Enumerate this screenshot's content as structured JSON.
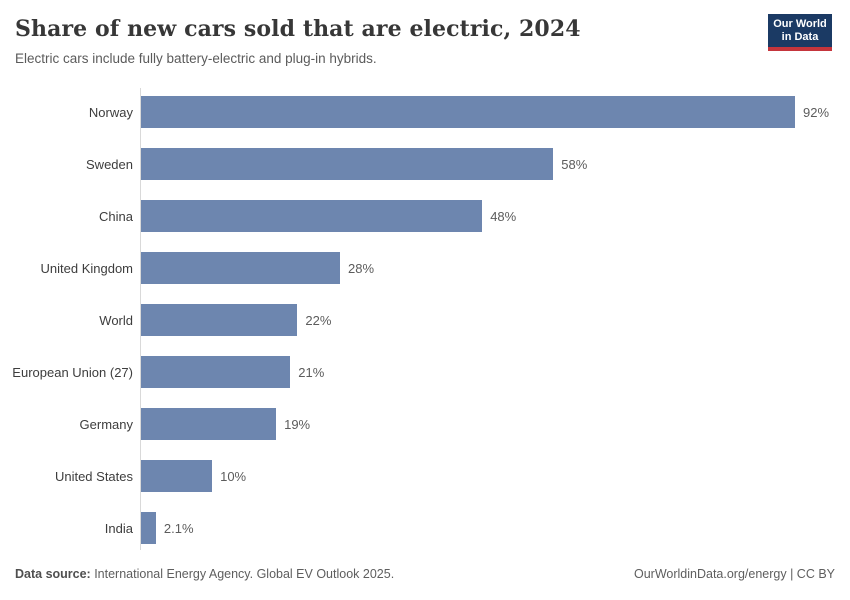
{
  "header": {
    "title": "Share of new cars sold that are electric, 2024",
    "subtitle": "Electric cars include fully battery-electric and plug-in hybrids.",
    "logo": {
      "line1": "Our World",
      "line2": "in Data",
      "bg_color": "#1b3a64",
      "accent_color": "#c5353c"
    }
  },
  "chart_data": {
    "type": "bar",
    "orientation": "horizontal",
    "title": "Share of new cars sold that are electric, 2024",
    "subtitle": "Electric cars include fully battery-electric and plug-in hybrids.",
    "categories": [
      "Norway",
      "Sweden",
      "China",
      "United Kingdom",
      "World",
      "European Union (27)",
      "Germany",
      "United States",
      "India"
    ],
    "values": [
      92,
      58,
      48,
      28,
      22,
      21,
      19,
      10,
      2.1
    ],
    "value_labels": [
      "92%",
      "58%",
      "48%",
      "28%",
      "22%",
      "21%",
      "19%",
      "10%",
      "2.1%"
    ],
    "xlabel": "",
    "ylabel": "",
    "xlim": [
      0,
      100
    ],
    "unit": "%",
    "bar_color": "#6d86af",
    "axis_line_color": "#d9d9d9",
    "grid": false,
    "legend": false
  },
  "footer": {
    "source_label": "Data source:",
    "source_text": " International Energy Agency. Global EV Outlook 2025.",
    "right_text": "OurWorldinData.org/energy | CC BY"
  }
}
